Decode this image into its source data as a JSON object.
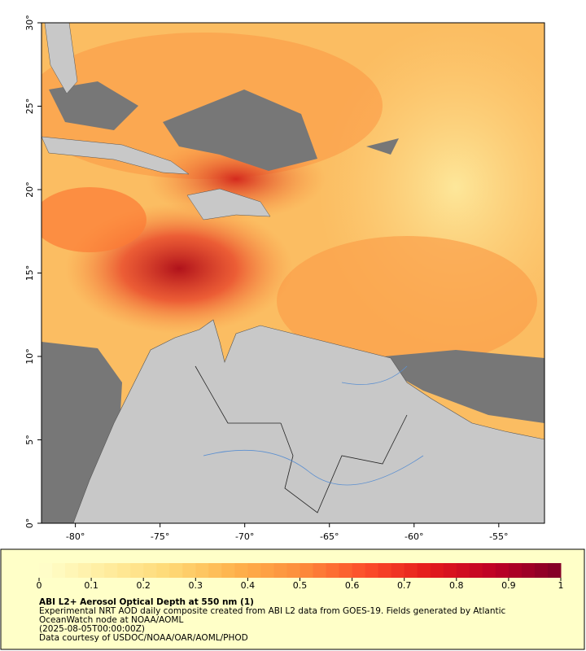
{
  "map": {
    "xlim": [
      -82,
      -52.3
    ],
    "ylim": [
      0,
      30
    ],
    "lon_ticks": [
      {
        "value": -80,
        "label": "-80°"
      },
      {
        "value": -75,
        "label": "-75°"
      },
      {
        "value": -70,
        "label": "-70°"
      },
      {
        "value": -65,
        "label": "-65°"
      },
      {
        "value": -60,
        "label": "-60°"
      },
      {
        "value": -55,
        "label": "-55°"
      }
    ],
    "lat_ticks": [
      {
        "value": 0,
        "label": "0°"
      },
      {
        "value": 5,
        "label": "5°"
      },
      {
        "value": 10,
        "label": "10°"
      },
      {
        "value": 15,
        "label": "15°"
      },
      {
        "value": 20,
        "label": "20°"
      },
      {
        "value": 25,
        "label": "25°"
      },
      {
        "value": 30,
        "label": "30°"
      }
    ]
  },
  "colorbar": {
    "lim": [
      0,
      1
    ],
    "ticks": [
      0,
      0.1,
      0.2,
      0.3,
      0.4,
      0.5,
      0.6,
      0.7,
      0.8,
      0.9,
      1
    ],
    "colors": [
      "#ffffcc",
      "#ffeda0",
      "#fed976",
      "#feb24c",
      "#fd8d3c",
      "#fc4e2a",
      "#e31a1c",
      "#bd0026",
      "#800026"
    ]
  },
  "caption": {
    "title": "ABI L2+ Aerosol Optical Depth at 550 nm (1)",
    "lines": [
      "Experimental NRT AOD daily composite created from ABI L2 data from GOES-19. Fields generated by Atlantic",
      "OceanWatch node at NOAA/AOML",
      "(2025-08-05T00:00:00Z)",
      "Data courtesy of USDOC/NOAA/OAR/AOML/PHOD"
    ]
  }
}
